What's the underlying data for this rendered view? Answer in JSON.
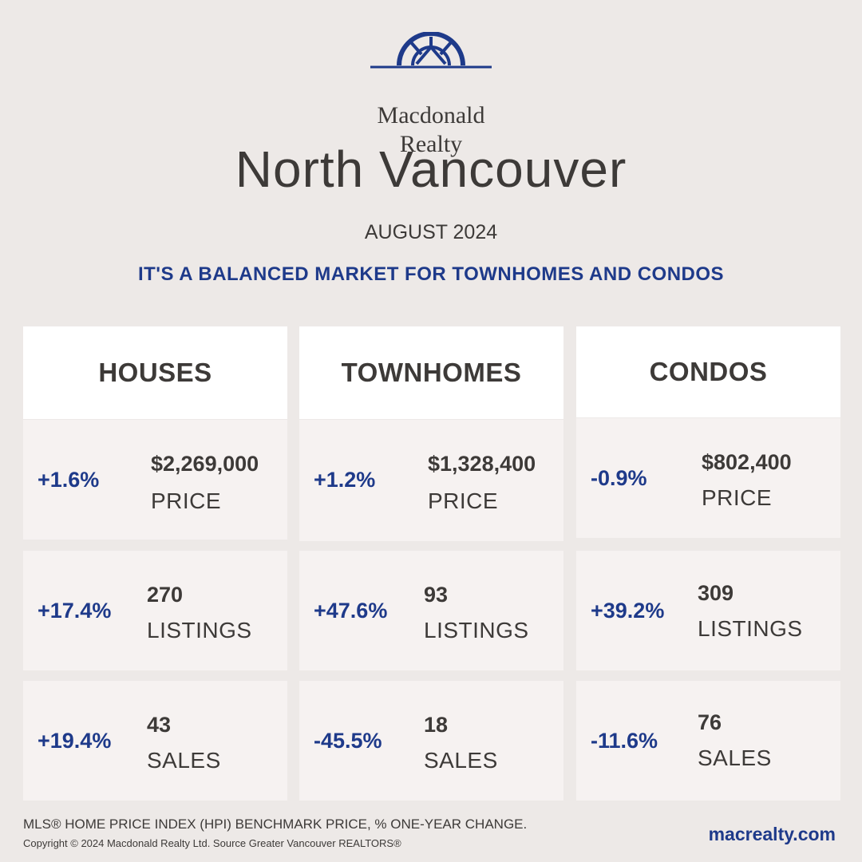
{
  "brand": {
    "name_line1": "Macdonald",
    "name_line2": "Realty"
  },
  "title": "North Vancouver",
  "period": "AUGUST 2024",
  "headline": "IT'S A BALANCED MARKET FOR TOWNHOMES AND CONDOS",
  "columns": [
    {
      "header": "HOUSES",
      "price": {
        "change": "+1.6%",
        "value": "$2,269,000",
        "label": "PRICE"
      },
      "listings": {
        "change": "+17.4%",
        "value": "270",
        "label": "LISTINGS"
      },
      "sales": {
        "change": "+19.4%",
        "value": "43",
        "label": "SALES"
      }
    },
    {
      "header": "TOWNHOMES",
      "price": {
        "change": "+1.2%",
        "value": "$1,328,400",
        "label": "PRICE"
      },
      "listings": {
        "change": "+47.6%",
        "value": "93",
        "label": "LISTINGS"
      },
      "sales": {
        "change": "-45.5%",
        "value": "18",
        "label": "SALES"
      }
    },
    {
      "header": "CONDOS",
      "price": {
        "change": "-0.9%",
        "value": "$802,400",
        "label": "PRICE"
      },
      "listings": {
        "change": "+39.2%",
        "value": "309",
        "label": "LISTINGS"
      },
      "sales": {
        "change": "-11.6%",
        "value": "76",
        "label": "SALES"
      }
    }
  ],
  "footnote": "MLS® HOME PRICE INDEX (HPI) BENCHMARK PRICE, % ONE-YEAR CHANGE.",
  "copyright": "Copyright © 2024 Macdonald Realty Ltd. Source Greater Vancouver REALTORS®",
  "website": "macrealty.com",
  "colors": {
    "accent": "#1e3a8a",
    "text": "#3d3a38",
    "background": "#ede9e7",
    "card": "#f6f2f1",
    "header_card": "#ffffff"
  }
}
